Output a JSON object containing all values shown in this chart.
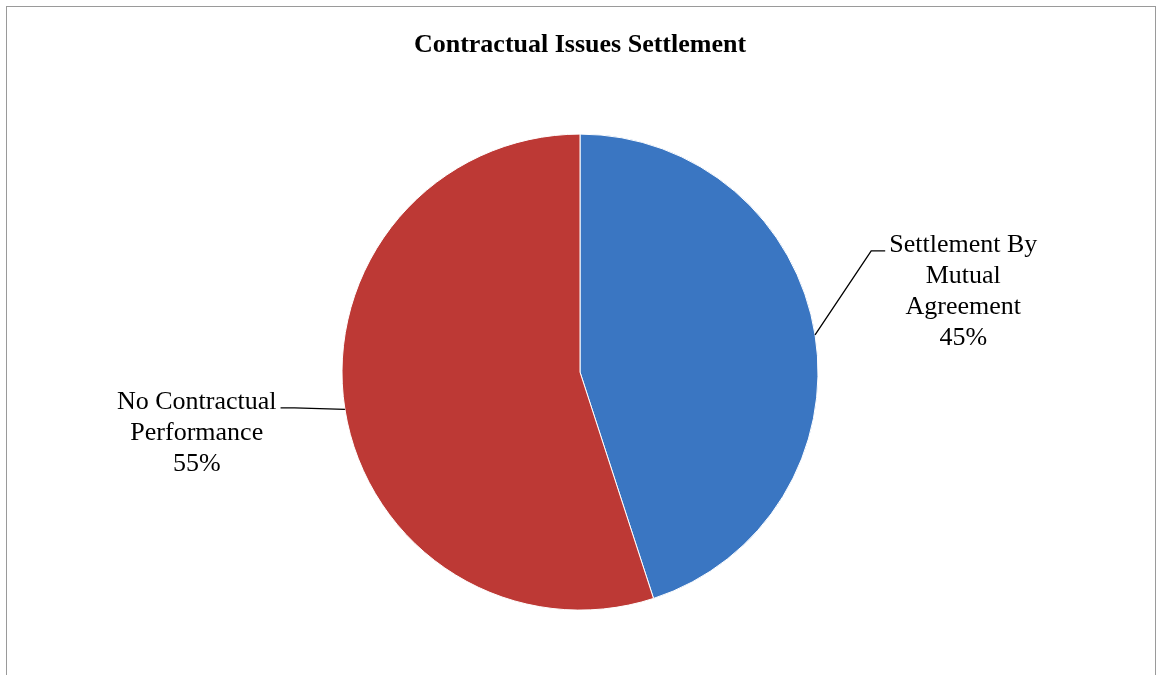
{
  "chart_data": {
    "type": "pie",
    "title": "Contractual Issues Settlement",
    "categories": [
      "Settlement By Mutual Agreement",
      "No Contractual Performance"
    ],
    "values": [
      45,
      55
    ],
    "colors": [
      "#3a76c2",
      "#bd3935"
    ],
    "value_labels": [
      "45%",
      "55%"
    ],
    "legend": false
  }
}
